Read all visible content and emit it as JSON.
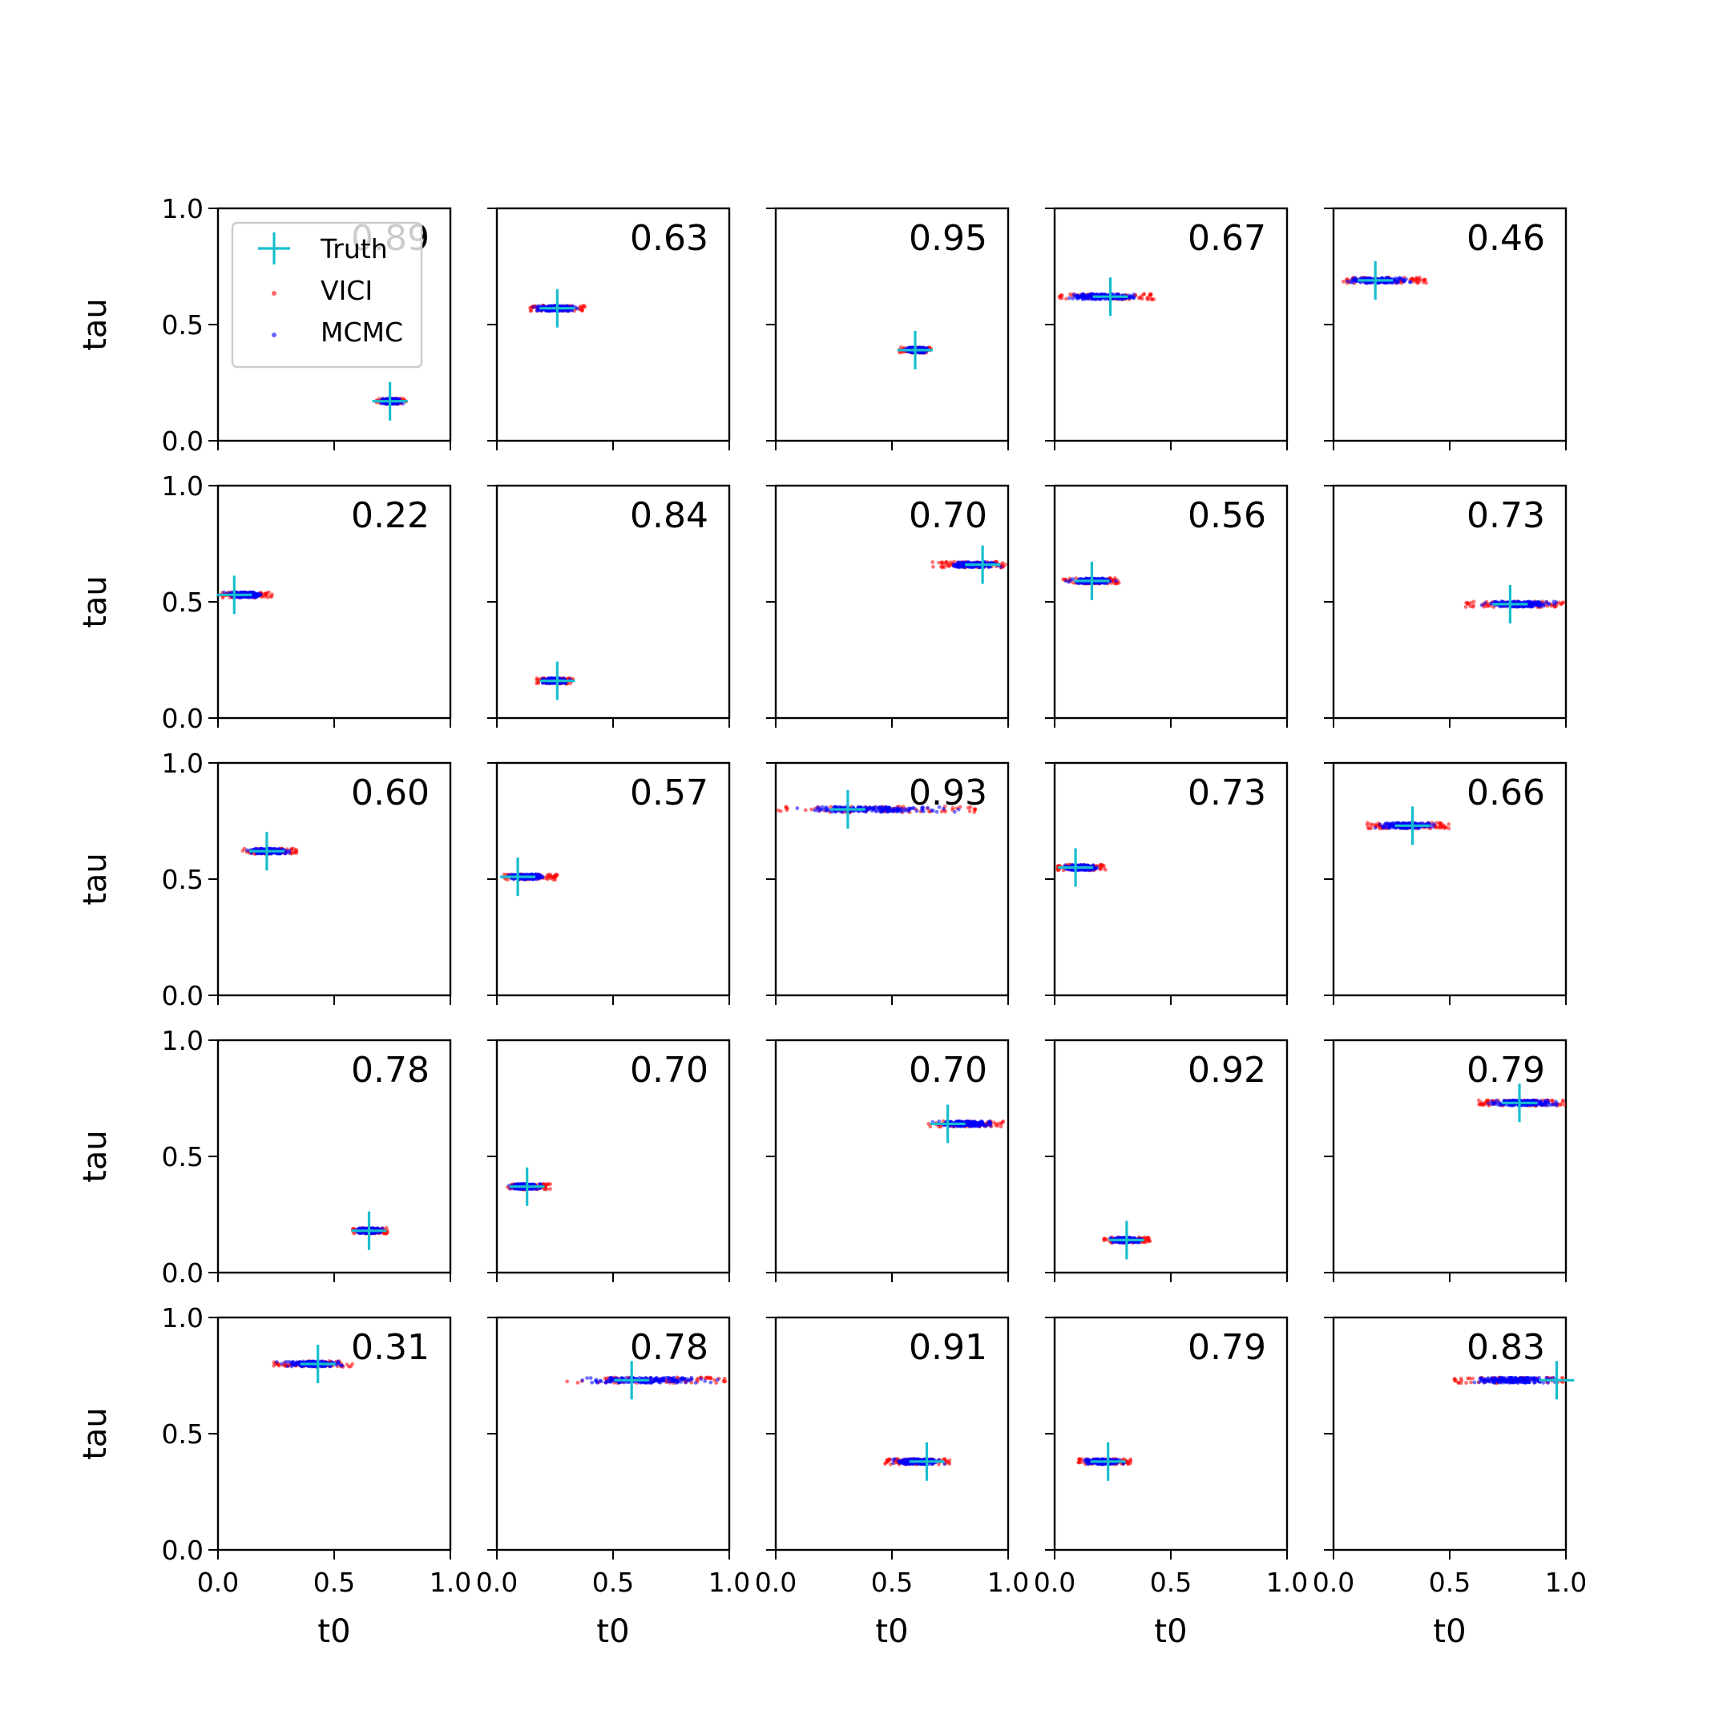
{
  "chart_data": {
    "type": "scatter",
    "grid_rows": 5,
    "grid_cols": 5,
    "xlabel": "t0",
    "ylabel": "tau",
    "xlim": [
      0.0,
      1.0
    ],
    "ylim": [
      0.0,
      1.0
    ],
    "x_ticks": [
      "0.0",
      "0.5",
      "1.0"
    ],
    "y_ticks": [
      "0.0",
      "0.5",
      "1.0"
    ],
    "grid": false,
    "colors": {
      "truth": "#17becf",
      "vici": "#ff0000",
      "mcmc": "#0000ff"
    },
    "legend": {
      "placement": "top-left of first panel",
      "entries": [
        {
          "label": "Truth",
          "marker": "plus",
          "color": "#17becf"
        },
        {
          "label": "VICI",
          "marker": "dot",
          "color": "#ff0000"
        },
        {
          "label": "MCMC",
          "marker": "dot",
          "color": "#0000ff"
        }
      ]
    },
    "panels": [
      {
        "overlap": "0.89",
        "truth": [
          0.74,
          0.17
        ],
        "mcmc_t0_range": [
          0.69,
          0.8
        ],
        "vici_t0_range": [
          0.68,
          0.81
        ]
      },
      {
        "overlap": "0.63",
        "truth": [
          0.26,
          0.57
        ],
        "mcmc_t0_range": [
          0.14,
          0.36
        ],
        "vici_t0_range": [
          0.14,
          0.38
        ]
      },
      {
        "overlap": "0.95",
        "truth": [
          0.6,
          0.39
        ],
        "mcmc_t0_range": [
          0.54,
          0.67
        ],
        "vici_t0_range": [
          0.53,
          0.67
        ]
      },
      {
        "overlap": "0.67",
        "truth": [
          0.24,
          0.62
        ],
        "mcmc_t0_range": [
          0.01,
          0.4
        ],
        "vici_t0_range": [
          0.01,
          0.43
        ]
      },
      {
        "overlap": "0.46",
        "truth": [
          0.18,
          0.69
        ],
        "mcmc_t0_range": [
          0.03,
          0.36
        ],
        "vici_t0_range": [
          0.03,
          0.4
        ]
      },
      {
        "overlap": "0.22",
        "truth": [
          0.07,
          0.53
        ],
        "mcmc_t0_range": [
          0.01,
          0.22
        ],
        "vici_t0_range": [
          0.01,
          0.24
        ]
      },
      {
        "overlap": "0.84",
        "truth": [
          0.26,
          0.16
        ],
        "mcmc_t0_range": [
          0.18,
          0.32
        ],
        "vici_t0_range": [
          0.17,
          0.33
        ]
      },
      {
        "overlap": "0.70",
        "truth": [
          0.89,
          0.66
        ],
        "mcmc_t0_range": [
          0.72,
          0.99
        ],
        "vici_t0_range": [
          0.67,
          0.99
        ]
      },
      {
        "overlap": "0.56",
        "truth": [
          0.16,
          0.59
        ],
        "mcmc_t0_range": [
          0.04,
          0.27
        ],
        "vici_t0_range": [
          0.03,
          0.28
        ]
      },
      {
        "overlap": "0.73",
        "truth": [
          0.76,
          0.49
        ],
        "mcmc_t0_range": [
          0.62,
          0.99
        ],
        "vici_t0_range": [
          0.55,
          0.99
        ]
      },
      {
        "overlap": "0.60",
        "truth": [
          0.21,
          0.62
        ],
        "mcmc_t0_range": [
          0.11,
          0.33
        ],
        "vici_t0_range": [
          0.1,
          0.34
        ]
      },
      {
        "overlap": "0.57",
        "truth": [
          0.09,
          0.51
        ],
        "mcmc_t0_range": [
          0.02,
          0.24
        ],
        "vici_t0_range": [
          0.02,
          0.26
        ]
      },
      {
        "overlap": "0.93",
        "truth": [
          0.31,
          0.8
        ],
        "mcmc_t0_range": [
          0.0,
          0.82
        ],
        "vici_t0_range": [
          0.0,
          0.86
        ]
      },
      {
        "overlap": "0.73",
        "truth": [
          0.09,
          0.55
        ],
        "mcmc_t0_range": [
          0.01,
          0.21
        ],
        "vici_t0_range": [
          0.01,
          0.22
        ]
      },
      {
        "overlap": "0.66",
        "truth": [
          0.34,
          0.73
        ],
        "mcmc_t0_range": [
          0.16,
          0.47
        ],
        "vici_t0_range": [
          0.14,
          0.5
        ]
      },
      {
        "overlap": "0.78",
        "truth": [
          0.65,
          0.18
        ],
        "mcmc_t0_range": [
          0.58,
          0.72
        ],
        "vici_t0_range": [
          0.58,
          0.73
        ]
      },
      {
        "overlap": "0.70",
        "truth": [
          0.13,
          0.37
        ],
        "mcmc_t0_range": [
          0.04,
          0.21
        ],
        "vici_t0_range": [
          0.04,
          0.23
        ]
      },
      {
        "overlap": "0.70",
        "truth": [
          0.74,
          0.64
        ],
        "mcmc_t0_range": [
          0.66,
          0.98
        ],
        "vici_t0_range": [
          0.64,
          0.98
        ]
      },
      {
        "overlap": "0.92",
        "truth": [
          0.31,
          0.14
        ],
        "mcmc_t0_range": [
          0.22,
          0.4
        ],
        "vici_t0_range": [
          0.21,
          0.41
        ]
      },
      {
        "overlap": "0.79",
        "truth": [
          0.8,
          0.73
        ],
        "mcmc_t0_range": [
          0.64,
          1.0
        ],
        "vici_t0_range": [
          0.62,
          1.0
        ]
      },
      {
        "overlap": "0.31",
        "truth": [
          0.43,
          0.8
        ],
        "mcmc_t0_range": [
          0.24,
          0.56
        ],
        "vici_t0_range": [
          0.23,
          0.58
        ]
      },
      {
        "overlap": "0.78",
        "truth": [
          0.58,
          0.73
        ],
        "mcmc_t0_range": [
          0.31,
          0.98
        ],
        "vici_t0_range": [
          0.3,
          0.99
        ]
      },
      {
        "overlap": "0.91",
        "truth": [
          0.65,
          0.38
        ],
        "mcmc_t0_range": [
          0.48,
          0.74
        ],
        "vici_t0_range": [
          0.47,
          0.75
        ]
      },
      {
        "overlap": "0.79",
        "truth": [
          0.23,
          0.38
        ],
        "mcmc_t0_range": [
          0.1,
          0.32
        ],
        "vici_t0_range": [
          0.1,
          0.33
        ]
      },
      {
        "overlap": "0.83",
        "truth": [
          0.96,
          0.73
        ],
        "mcmc_t0_range": [
          0.55,
          1.0
        ],
        "vici_t0_range": [
          0.52,
          1.0
        ]
      }
    ]
  }
}
